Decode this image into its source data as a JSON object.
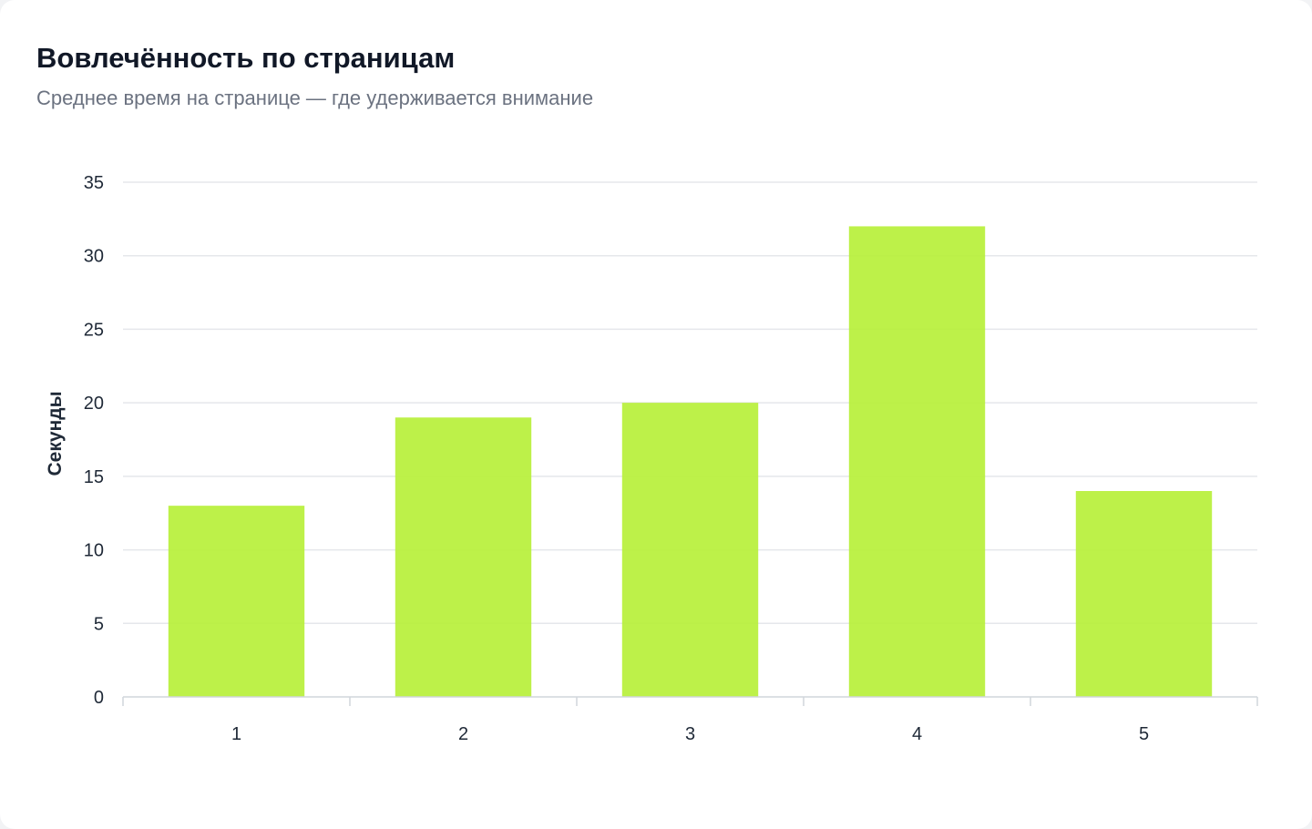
{
  "header": {
    "title": "Вовлечённость по страницам",
    "subtitle": "Среднее время на странице — где удерживается внимание"
  },
  "chart_data": {
    "type": "bar",
    "categories": [
      "1",
      "2",
      "3",
      "4",
      "5"
    ],
    "values": [
      13,
      19,
      20,
      32,
      14
    ],
    "xlabel": "",
    "ylabel": "Секунды",
    "ylim": [
      0,
      35
    ],
    "yticks": [
      0,
      5,
      10,
      15,
      20,
      25,
      30,
      35
    ],
    "grid": true,
    "legend": "none",
    "bar_color": "#b7f03a"
  }
}
